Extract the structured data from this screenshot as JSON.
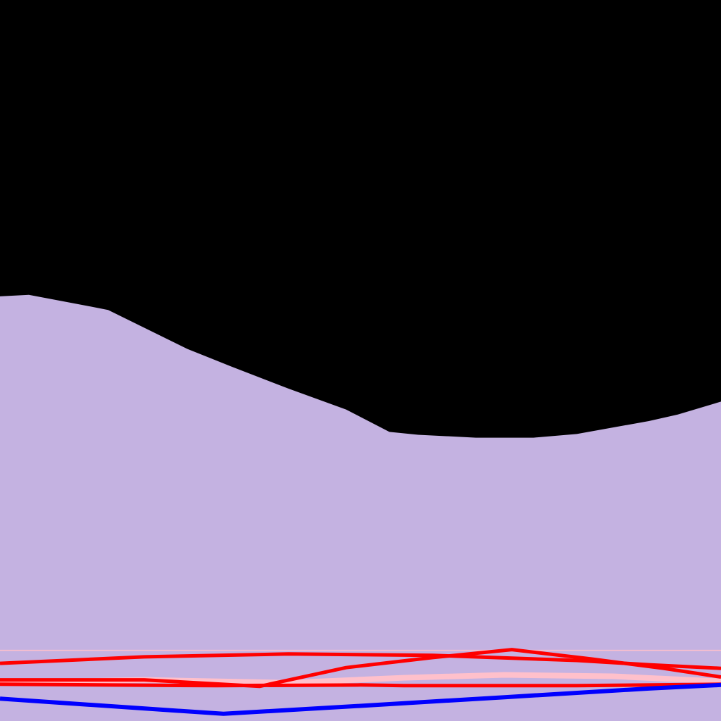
{
  "chart_data": {
    "type": "area",
    "background": "#000000",
    "xlim": [
      0,
      1
    ],
    "ylim": [
      0,
      1
    ],
    "grid": false,
    "series": [
      {
        "kind": "area",
        "color": "#c4b2e1",
        "points": [
          [
            0.0,
            0.589
          ],
          [
            0.04,
            0.591
          ],
          [
            0.12,
            0.576
          ],
          [
            0.15,
            0.57
          ],
          [
            0.26,
            0.516
          ],
          [
            0.32,
            0.492
          ],
          [
            0.4,
            0.461
          ],
          [
            0.48,
            0.432
          ],
          [
            0.54,
            0.401
          ],
          [
            0.58,
            0.397
          ],
          [
            0.66,
            0.393
          ],
          [
            0.7,
            0.393
          ],
          [
            0.74,
            0.393
          ],
          [
            0.8,
            0.398
          ],
          [
            0.9,
            0.416
          ],
          [
            0.94,
            0.425
          ],
          [
            1.0,
            0.443
          ]
        ]
      },
      {
        "kind": "line",
        "color": "#ffc0cb",
        "width": 1.5,
        "points": [
          [
            0.0,
            0.098
          ],
          [
            1.0,
            0.098
          ]
        ]
      },
      {
        "kind": "line",
        "color": "#ffc0cb",
        "width": 8,
        "points": [
          [
            0.0,
            0.053
          ],
          [
            0.2,
            0.057
          ],
          [
            0.4,
            0.053
          ],
          [
            0.56,
            0.06
          ],
          [
            0.7,
            0.064
          ],
          [
            0.85,
            0.062
          ],
          [
            1.0,
            0.055
          ]
        ]
      },
      {
        "kind": "line",
        "color": "#ff0000",
        "width": 5,
        "points": [
          [
            0.0,
            0.08
          ],
          [
            0.2,
            0.089
          ],
          [
            0.4,
            0.093
          ],
          [
            0.6,
            0.091
          ],
          [
            0.8,
            0.084
          ],
          [
            0.9,
            0.078
          ],
          [
            1.0,
            0.073
          ]
        ]
      },
      {
        "kind": "line",
        "color": "#ff0000",
        "width": 5,
        "points": [
          [
            0.0,
            0.057
          ],
          [
            0.2,
            0.057
          ],
          [
            0.36,
            0.048
          ],
          [
            0.48,
            0.074
          ],
          [
            0.6,
            0.088
          ],
          [
            0.71,
            0.099
          ],
          [
            0.82,
            0.086
          ],
          [
            0.92,
            0.073
          ],
          [
            1.0,
            0.061
          ]
        ]
      },
      {
        "kind": "line",
        "color": "#ff0000",
        "width": 5,
        "points": [
          [
            0.0,
            0.051
          ],
          [
            0.3,
            0.049
          ],
          [
            0.5,
            0.05
          ],
          [
            0.56,
            0.049
          ],
          [
            0.8,
            0.049
          ],
          [
            1.0,
            0.051
          ]
        ]
      },
      {
        "kind": "line",
        "color": "#0000ff",
        "width": 6,
        "points": [
          [
            0.0,
            0.031
          ],
          [
            0.31,
            0.01
          ],
          [
            0.5,
            0.021
          ],
          [
            0.7,
            0.033
          ],
          [
            0.9,
            0.045
          ],
          [
            1.0,
            0.05
          ]
        ]
      }
    ]
  }
}
